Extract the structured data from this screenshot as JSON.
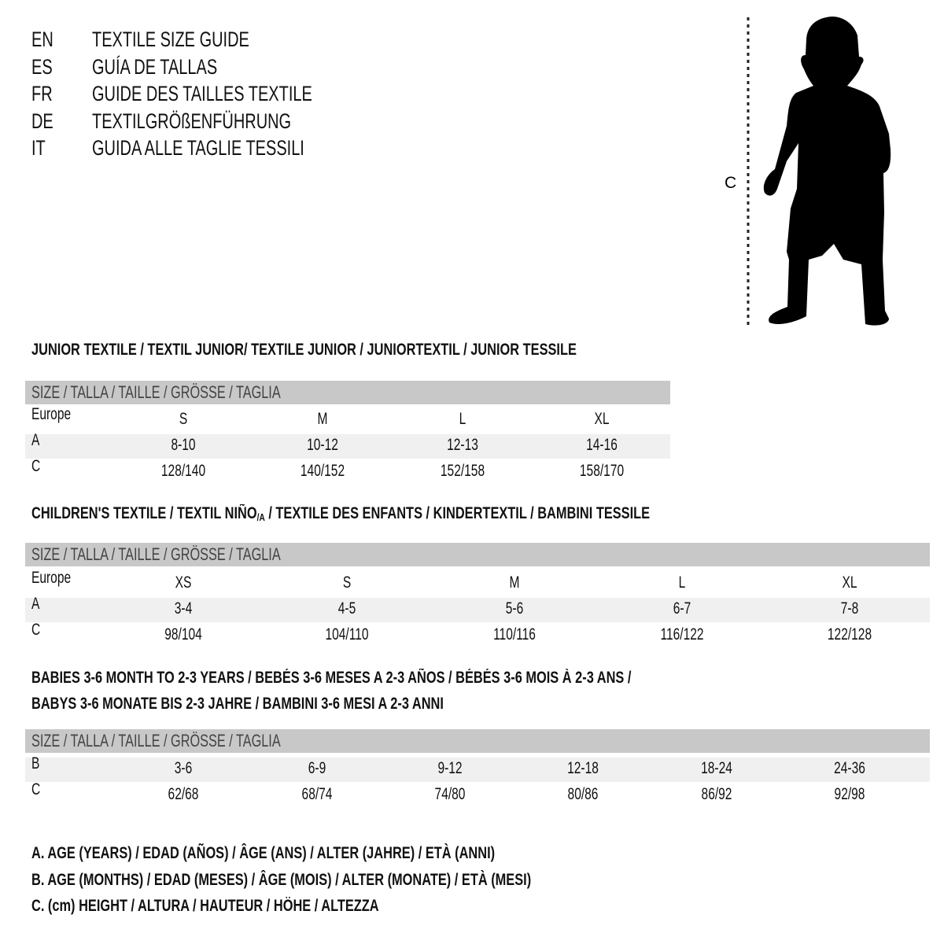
{
  "header": {
    "rows": [
      {
        "code": "EN",
        "title": "TEXTILE SIZE GUIDE"
      },
      {
        "code": "ES",
        "title": "GUÍA DE TALLAS"
      },
      {
        "code": "FR",
        "title": "GUIDE DES TAILLES TEXTILE"
      },
      {
        "code": "DE",
        "title": "TEXTILGRÖßENFÜHRUNG"
      },
      {
        "code": "IT",
        "title": "GUIDA ALLE TAGLIE TESSILI"
      }
    ]
  },
  "figure": {
    "label": "C",
    "icon": "child-silhouette"
  },
  "size_bar_label": "SIZE / TALLA / TAILLE / GRÖSSE / TAGLIA",
  "junior": {
    "title": "JUNIOR TEXTILE / TEXTIL JUNIOR/ TEXTILE JUNIOR / JUNIORTEXTIL / JUNIOR TESSILE",
    "rows": [
      {
        "label": "Europe",
        "values": [
          "S",
          "M",
          "L",
          "XL"
        ]
      },
      {
        "label": "A",
        "values": [
          "8-10",
          "10-12",
          "12-13",
          "14-16"
        ]
      },
      {
        "label": "C",
        "values": [
          "128/140",
          "140/152",
          "152/158",
          "158/170"
        ]
      }
    ]
  },
  "children": {
    "title_pre": "CHILDREN'S TEXTILE / TEXTIL NIÑO",
    "title_sub": "/A",
    "title_post": " / TEXTILE DES ENFANTS / KINDERTEXTIL / BAMBINI TESSILE",
    "rows": [
      {
        "label": "Europe",
        "values": [
          "XS",
          "S",
          "M",
          "L",
          "XL"
        ]
      },
      {
        "label": "A",
        "values": [
          "3-4",
          "4-5",
          "5-6",
          "6-7",
          "7-8"
        ]
      },
      {
        "label": "C",
        "values": [
          "98/104",
          "104/110",
          "110/116",
          "116/122",
          "122/128"
        ]
      }
    ]
  },
  "babies": {
    "title_line1": "BABIES 3-6 MONTH TO 2-3 YEARS / BEBÉS 3-6 MESES A 2-3 AÑOS / BÉBÉS 3-6 MOIS À 2-3 ANS /",
    "title_line2": "BABYS 3-6 MONATE BIS 2-3 JAHRE / BAMBINI 3-6 MESI A 2-3 ANNI",
    "rows": [
      {
        "label": "B",
        "values": [
          "3-6",
          "6-9",
          "9-12",
          "12-18",
          "18-24",
          "24-36"
        ]
      },
      {
        "label": "C",
        "values": [
          "62/68",
          "68/74",
          "74/80",
          "80/86",
          "86/92",
          "92/98"
        ]
      }
    ]
  },
  "legend": [
    "A. AGE (YEARS) / EDAD (AÑOS) / ÂGE (ANS) / ALTER (JAHRE) / ETÀ (ANNI)",
    "B. AGE (MONTHS) / EDAD (MESES) / ÂGE (MOIS) / ALTER (MONATE) / ETÀ (MESI)",
    "C. (cm) HEIGHT / ALTURA / HAUTEUR / HÖHE / ALTEZZA"
  ],
  "colors": {
    "bar": "#c8c8c8",
    "band": "#f0f0f0",
    "text": "#111111"
  }
}
